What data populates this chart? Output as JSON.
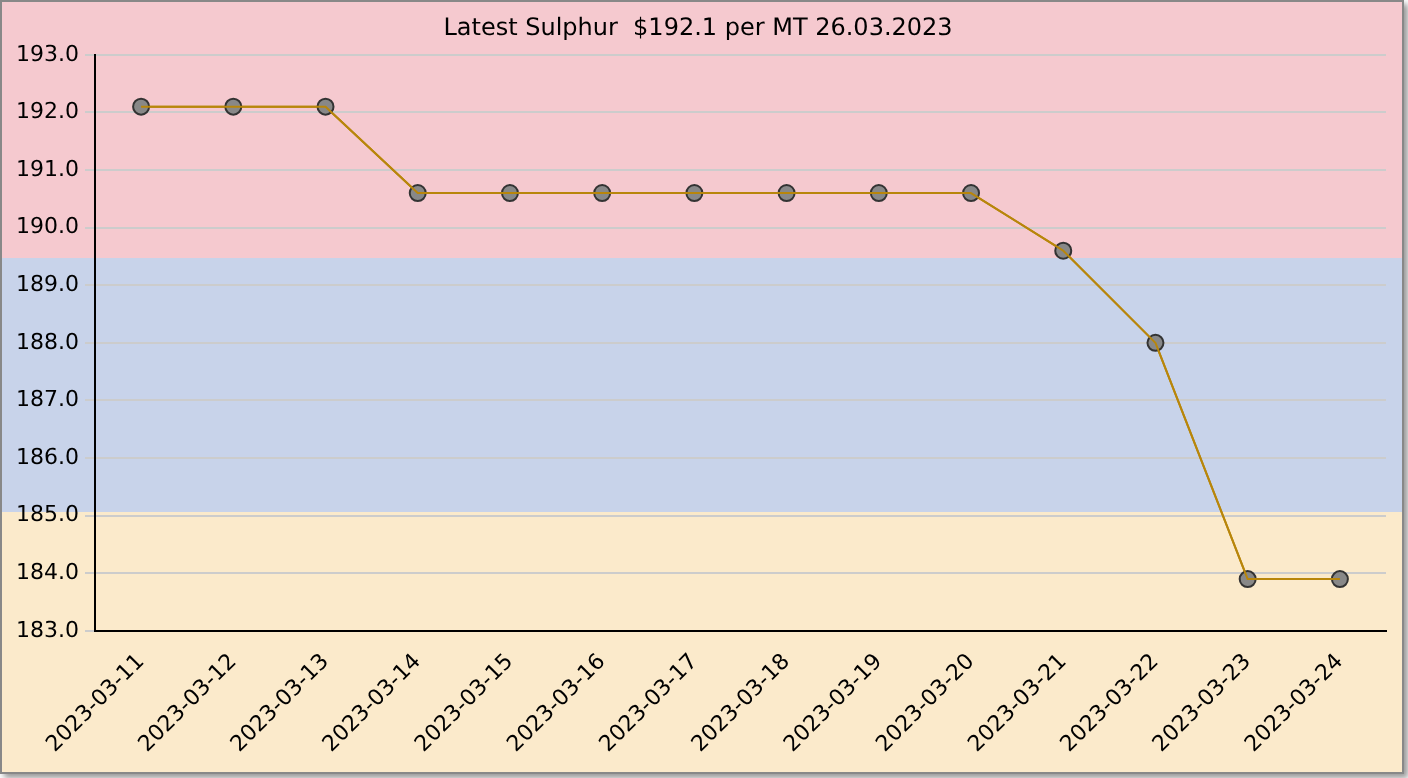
{
  "chart_data": {
    "type": "line",
    "title": "Latest Sulphur  $192.1 per MT 26.03.2023",
    "categories": [
      "2023-03-11",
      "2023-03-12",
      "2023-03-13",
      "2023-03-14",
      "2023-03-15",
      "2023-03-16",
      "2023-03-17",
      "2023-03-18",
      "2023-03-19",
      "2023-03-20",
      "2023-03-21",
      "2023-03-22",
      "2023-03-23",
      "2023-03-24"
    ],
    "series": [
      {
        "color": "#b8860b",
        "values": [
          192.1,
          192.1,
          192.1,
          190.6,
          190.6,
          190.6,
          190.6,
          190.6,
          190.6,
          190.6,
          189.6,
          188.0,
          183.9,
          183.9
        ]
      }
    ],
    "ylim": [
      183,
      193
    ],
    "yticks": [
      {
        "value": 183,
        "label": "183.0"
      },
      {
        "value": 184,
        "label": "184.0"
      },
      {
        "value": 185,
        "label": "185.0"
      },
      {
        "value": 186,
        "label": "186.0"
      },
      {
        "value": 187,
        "label": "187.0"
      },
      {
        "value": 188,
        "label": "188.0"
      },
      {
        "value": 189,
        "label": "189.0"
      },
      {
        "value": 190,
        "label": "190.0"
      },
      {
        "value": 191,
        "label": "191.0"
      },
      {
        "value": 192,
        "label": "192.0"
      },
      {
        "value": 193,
        "label": "193.0"
      }
    ],
    "grid": "y",
    "marker": "circle",
    "line_style": "solid",
    "legend": false
  }
}
